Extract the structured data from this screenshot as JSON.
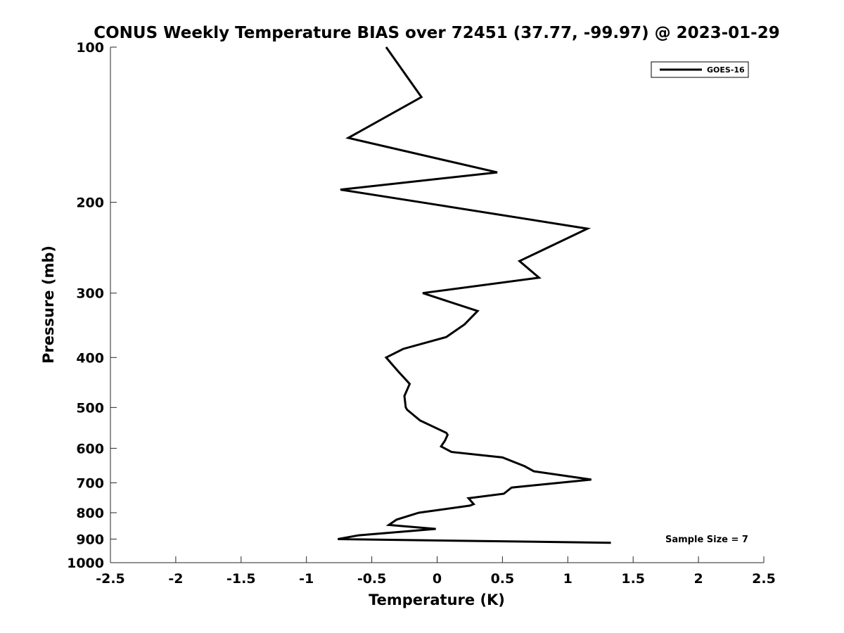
{
  "chart_data": {
    "type": "line",
    "title": "CONUS Weekly Temperature BIAS over 72451 (37.77, -99.97) @ 2023-01-29",
    "xlabel": "Temperature (K)",
    "ylabel": "Pressure (mb)",
    "xlim": [
      -2.5,
      2.5
    ],
    "ylim": [
      100,
      1000
    ],
    "y_scale": "log",
    "y_reversed": true,
    "x_ticks": [
      "-2.5",
      "-2",
      "-1.5",
      "-1",
      "-0.5",
      "0",
      "0.5",
      "1",
      "1.5",
      "2",
      "2.5"
    ],
    "y_ticks": [
      "100",
      "200",
      "300",
      "400",
      "500",
      "600",
      "700",
      "800",
      "900",
      "1000"
    ],
    "grid": false,
    "legend": {
      "placement": "top-right",
      "entries": [
        "GOES-16"
      ]
    },
    "annotation": "Sample Size = 7",
    "line_color": "#000000",
    "series": [
      {
        "name": "GOES-16",
        "points": [
          {
            "x": -0.39,
            "p": 100
          },
          {
            "x": -0.12,
            "p": 125
          },
          {
            "x": -0.68,
            "p": 150
          },
          {
            "x": 0.46,
            "p": 175
          },
          {
            "x": -0.74,
            "p": 189
          },
          {
            "x": -0.12,
            "p": 200
          },
          {
            "x": 1.15,
            "p": 225
          },
          {
            "x": 0.63,
            "p": 260
          },
          {
            "x": 0.78,
            "p": 280
          },
          {
            "x": -0.11,
            "p": 300
          },
          {
            "x": 0.31,
            "p": 325
          },
          {
            "x": 0.21,
            "p": 345
          },
          {
            "x": 0.07,
            "p": 365
          },
          {
            "x": -0.26,
            "p": 385
          },
          {
            "x": -0.39,
            "p": 400
          },
          {
            "x": -0.3,
            "p": 425
          },
          {
            "x": -0.21,
            "p": 450
          },
          {
            "x": -0.25,
            "p": 475
          },
          {
            "x": -0.24,
            "p": 500
          },
          {
            "x": -0.23,
            "p": 505
          },
          {
            "x": -0.13,
            "p": 530
          },
          {
            "x": 0.07,
            "p": 560
          },
          {
            "x": 0.08,
            "p": 565
          },
          {
            "x": 0.06,
            "p": 580
          },
          {
            "x": 0.04,
            "p": 590
          },
          {
            "x": 0.03,
            "p": 595
          },
          {
            "x": 0.11,
            "p": 610
          },
          {
            "x": 0.5,
            "p": 625
          },
          {
            "x": 0.67,
            "p": 650
          },
          {
            "x": 0.74,
            "p": 665
          },
          {
            "x": 1.18,
            "p": 690
          },
          {
            "x": 0.57,
            "p": 715
          },
          {
            "x": 0.51,
            "p": 735
          },
          {
            "x": 0.24,
            "p": 750
          },
          {
            "x": 0.28,
            "p": 770
          },
          {
            "x": 0.25,
            "p": 775
          },
          {
            "x": -0.14,
            "p": 800
          },
          {
            "x": -0.31,
            "p": 825
          },
          {
            "x": -0.37,
            "p": 845
          },
          {
            "x": -0.01,
            "p": 860
          },
          {
            "x": -0.6,
            "p": 885
          },
          {
            "x": -0.76,
            "p": 900
          },
          {
            "x": 1.33,
            "p": 915
          }
        ]
      }
    ]
  }
}
